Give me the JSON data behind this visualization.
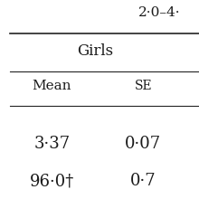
{
  "header_top": "2·0–4·",
  "group_label": "Girls",
  "col1_label": "Mean",
  "col2_label": "SE",
  "row1_col1": "3·37",
  "row1_col2": "0·07",
  "row2_col1": "96·0†",
  "row2_col2": "0·7",
  "bg_color": "#ffffff",
  "text_color": "#1a1a1a",
  "line_color": "#222222",
  "font_size_header": 11,
  "font_size_group": 12,
  "font_size_col": 11,
  "font_size_data": 13
}
